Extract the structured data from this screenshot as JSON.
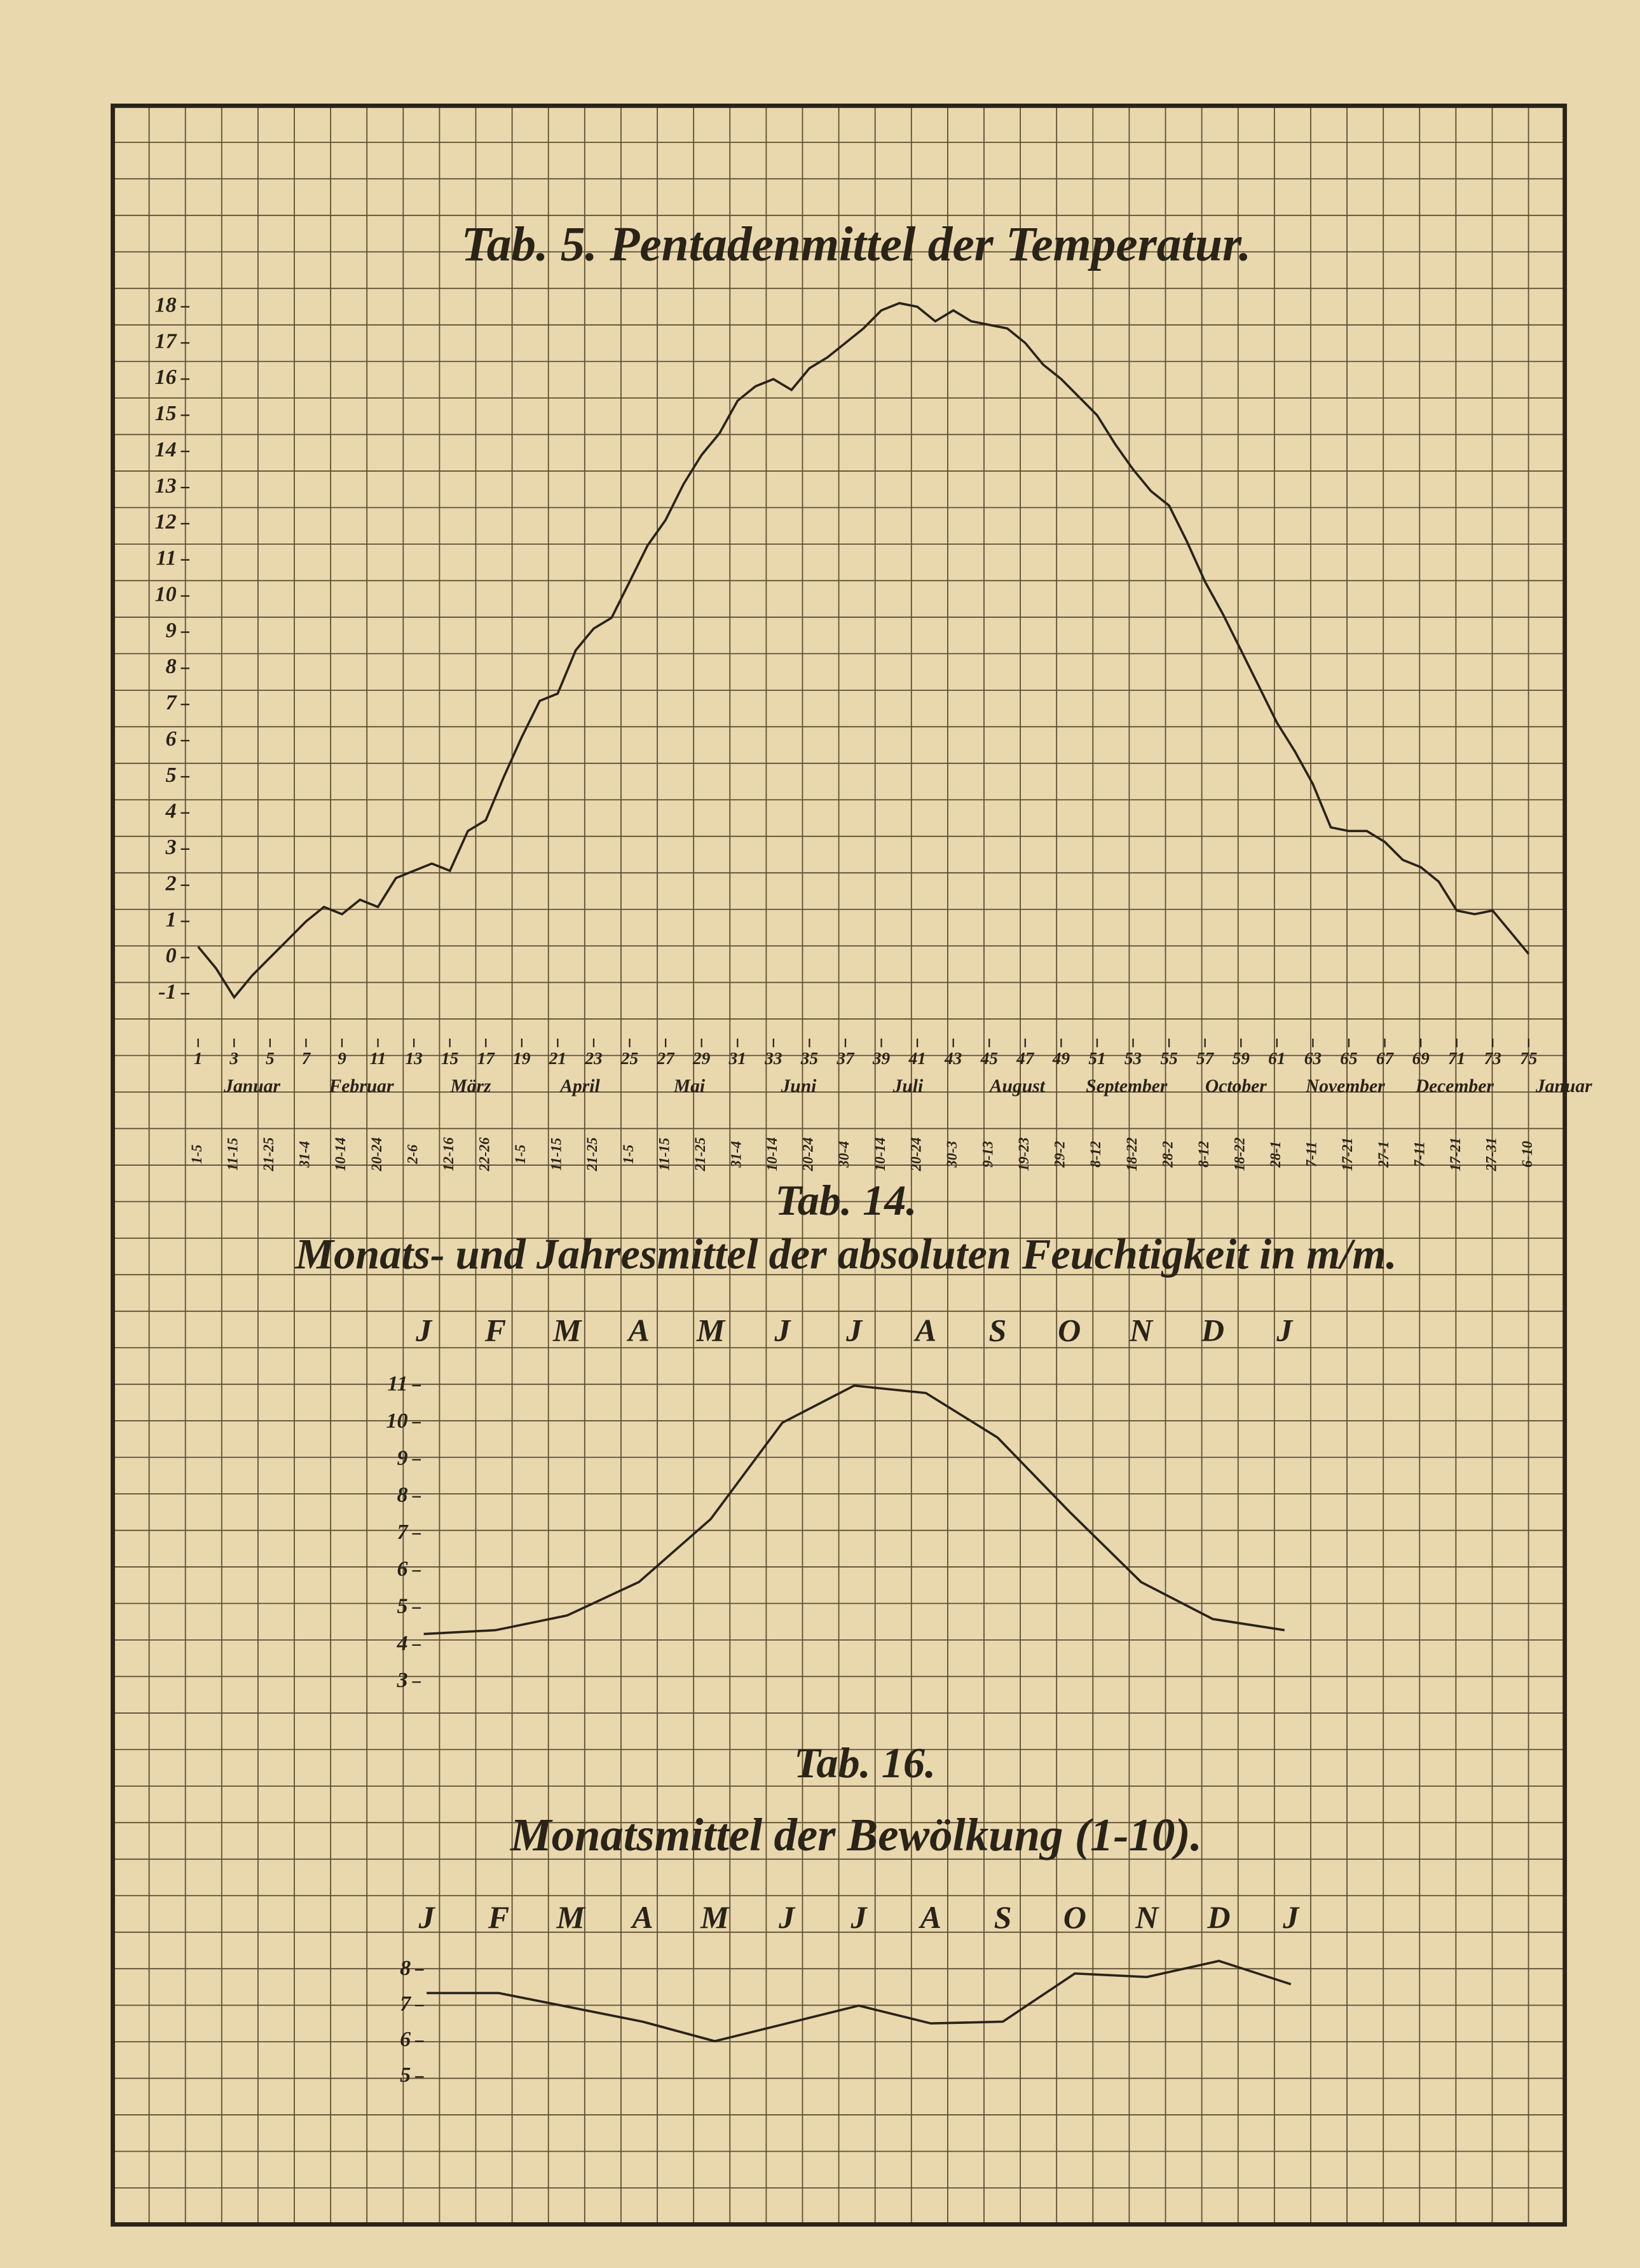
{
  "chart_data": [
    {
      "type": "line",
      "title": "Tab. 5. Pentadenmittel der Temperatur.",
      "x": [
        1,
        2,
        3,
        4,
        5,
        6,
        7,
        8,
        9,
        10,
        11,
        12,
        13,
        14,
        15,
        16,
        17,
        18,
        19,
        20,
        21,
        22,
        23,
        24,
        25,
        26,
        27,
        28,
        29,
        30,
        31,
        32,
        33,
        34,
        35,
        36,
        37,
        38,
        39,
        40,
        41,
        42,
        43,
        44,
        45,
        46,
        47,
        48,
        49,
        50,
        51,
        52,
        53,
        54,
        55,
        56,
        57,
        58,
        59,
        60,
        61,
        62,
        63,
        64,
        65,
        66,
        67,
        68,
        69,
        70,
        71,
        72,
        73,
        74,
        75
      ],
      "values": [
        0.3,
        -0.3,
        -1.1,
        -0.5,
        0,
        0.5,
        1.0,
        1.4,
        1.2,
        1.6,
        1.4,
        2.2,
        2.4,
        2.6,
        2.4,
        3.5,
        3.8,
        5.0,
        6.1,
        7.1,
        7.3,
        8.5,
        9.1,
        9.4,
        10.4,
        11.4,
        12.1,
        13.1,
        13.9,
        14.5,
        15.4,
        15.8,
        16.0,
        15.7,
        16.3,
        16.6,
        17.0,
        17.4,
        17.9,
        18.1,
        18.0,
        17.6,
        17.9,
        17.6,
        17.5,
        17.4,
        17.0,
        16.4,
        16.0,
        15.5,
        15.0,
        14.2,
        13.5,
        12.9,
        12.5,
        11.5,
        10.4,
        9.5,
        8.5,
        7.5,
        6.5,
        5.7,
        4.8,
        3.6,
        3.5,
        3.5,
        3.2,
        2.7,
        2.5,
        2.1,
        1.3,
        1.2,
        1.3,
        0.7,
        0.1
      ],
      "color": "#2a2318",
      "xlim": [
        1,
        75
      ],
      "xticks": [
        1,
        3,
        5,
        7,
        9,
        11,
        13,
        15,
        17,
        19,
        21,
        23,
        25,
        27,
        29,
        31,
        33,
        35,
        37,
        39,
        41,
        43,
        45,
        47,
        49,
        51,
        53,
        55,
        57,
        59,
        61,
        63,
        65,
        67,
        69,
        71,
        73,
        75
      ],
      "period_labels": [
        "1-5",
        "11-15",
        "21-25",
        "31-4",
        "10-14",
        "20-24",
        "2-6",
        "12-16",
        "22-26",
        "1-5",
        "11-15",
        "21-25",
        "1-5",
        "11-15",
        "21-25",
        "31-4",
        "10-14",
        "20-24",
        "30-4",
        "10-14",
        "20-24",
        "30-3",
        "9-13",
        "19-23",
        "29-2",
        "8-12",
        "18-22",
        "28-2",
        "8-12",
        "18-22",
        "28-1",
        "7-11",
        "17-21",
        "27-1",
        "7-11",
        "17-21",
        "27-31",
        "6-10"
      ],
      "months": [
        "Januar",
        "Februar",
        "März",
        "April",
        "Mai",
        "Juni",
        "Juli",
        "August",
        "September",
        "October",
        "November",
        "December",
        "Januar"
      ],
      "ylim": [
        -1,
        18
      ],
      "yticks": [
        -1,
        0,
        1,
        2,
        3,
        4,
        5,
        6,
        7,
        8,
        9,
        10,
        11,
        12,
        13,
        14,
        15,
        16,
        17,
        18
      ]
    },
    {
      "type": "line",
      "title": "Tab. 14.",
      "subtitle": "Monats- und Jahresmittel der absoluten Feuchtigkeit in m/m.",
      "categories": [
        "J",
        "F",
        "M",
        "A",
        "M",
        "J",
        "J",
        "A",
        "S",
        "O",
        "N",
        "D",
        "J"
      ],
      "values": [
        4.3,
        4.4,
        4.8,
        5.7,
        7.4,
        10.0,
        11.0,
        10.8,
        9.6,
        7.6,
        5.7,
        4.7,
        4.4
      ],
      "color": "#2a2318",
      "ylim": [
        3,
        11
      ],
      "yticks": [
        3,
        4,
        5,
        6,
        7,
        8,
        9,
        10,
        11
      ]
    },
    {
      "type": "line",
      "title": "Tab. 16.",
      "subtitle": "Monatsmittel der Bewölkung (1-10).",
      "categories": [
        "J",
        "F",
        "M",
        "A",
        "M",
        "J",
        "J",
        "A",
        "S",
        "O",
        "N",
        "D",
        "J"
      ],
      "values": [
        7.35,
        7.35,
        6.95,
        6.55,
        6.0,
        6.5,
        7.0,
        6.5,
        6.55,
        7.9,
        7.8,
        8.25,
        7.6
      ],
      "color": "#2a2318",
      "ylim": [
        5,
        8
      ],
      "yticks": [
        5,
        6,
        7,
        8
      ]
    }
  ]
}
